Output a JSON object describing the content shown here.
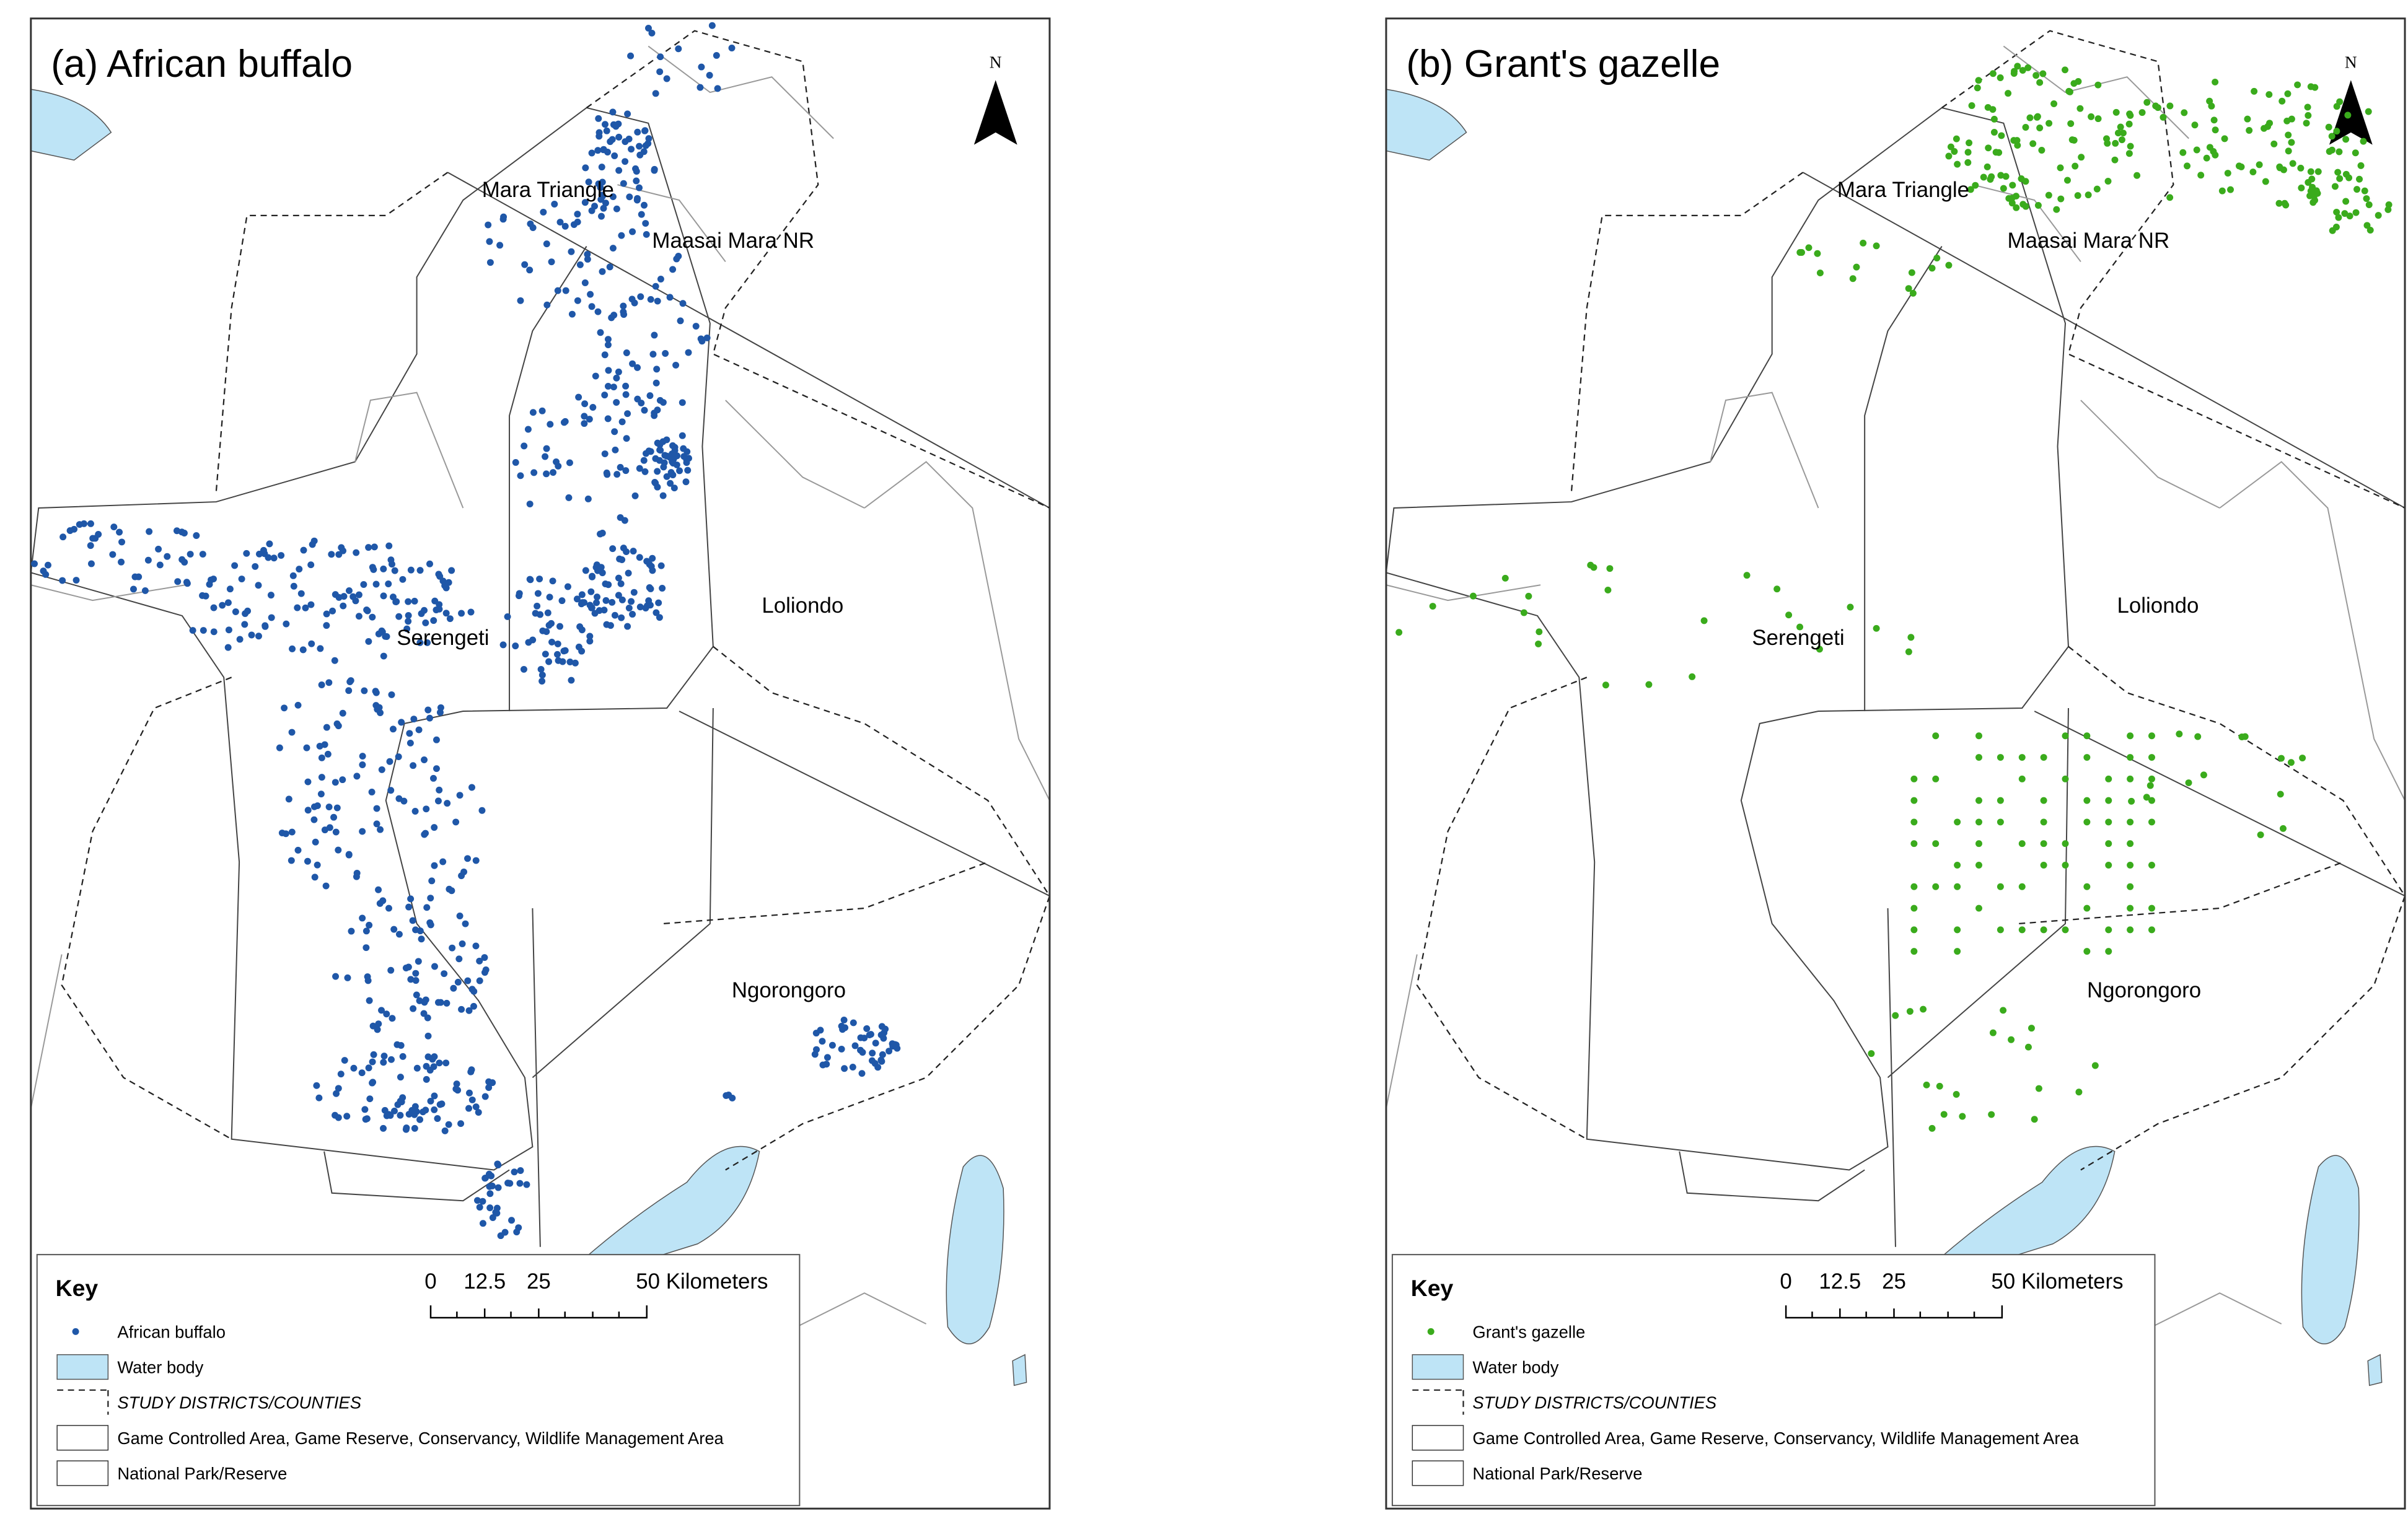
{
  "panels": [
    {
      "title": "(a) African buffalo",
      "north": "N",
      "color": "#1f57a8",
      "places": [
        "Mara Triangle",
        "Maasai Mara NR",
        "Serengeti",
        "Loliondo",
        "Ngorongoro"
      ],
      "key": {
        "title": "Key",
        "items": [
          "African buffalo",
          "Water body",
          "STUDY DISTRICTS/COUNTIES",
          "Game Controlled Area, Game Reserve, Conservancy, Wildlife Management Area",
          "National Park/Reserve"
        ]
      },
      "scale": [
        "0",
        "12.5",
        "25",
        "50 Kilometers"
      ]
    },
    {
      "title": "(b) Grant's gazelle",
      "north": "N",
      "color": "#3aab1c",
      "places": [
        "Mara Triangle",
        "Maasai Mara NR",
        "Serengeti",
        "Loliondo",
        "Ngorongoro"
      ],
      "key": {
        "title": "Key",
        "items": [
          "Grant's gazelle",
          "Water body",
          "STUDY DISTRICTS/COUNTIES",
          "Game Controlled Area, Game Reserve, Conservancy, Wildlife Management Area",
          "National Park/Reserve"
        ]
      },
      "scale": [
        "0",
        "12.5",
        "25",
        "50 Kilometers"
      ]
    }
  ]
}
